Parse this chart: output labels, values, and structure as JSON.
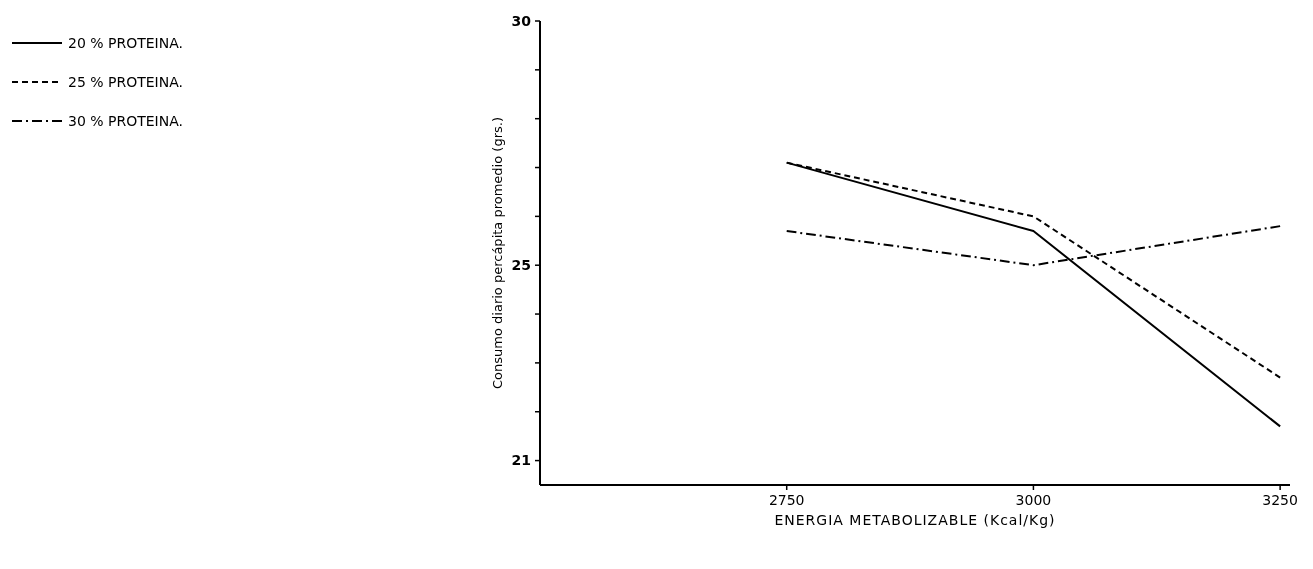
{
  "chart_data": {
    "type": "line",
    "xlabel": "ENERGIA METABOLIZABLE (Kcal/Kg)",
    "ylabel": "Consumo diario percápita promedio (grs.)",
    "x": [
      2750,
      3000,
      3250
    ],
    "series": [
      {
        "name": "20 % PROTEINA.",
        "color": "#000000",
        "line_style": "solid",
        "values": [
          27.1,
          25.7,
          21.7
        ]
      },
      {
        "name": "25 % PROTEINA.",
        "color": "#000000",
        "line_style": "dashed",
        "values": [
          27.1,
          26.0,
          22.7
        ]
      },
      {
        "name": "30 % PROTEINA.",
        "color": "#000000",
        "line_style": "dashdot",
        "values": [
          25.7,
          25.0,
          25.8
        ]
      }
    ],
    "xlim": [
      2500,
      3260
    ],
    "xticks": [
      2750,
      3000,
      3250
    ],
    "ylim": [
      20.5,
      30
    ],
    "yticks": [
      30,
      {
        "value": 29,
        "label": null
      },
      {
        "value": 28,
        "label": null
      },
      {
        "value": 27,
        "label": null
      },
      {
        "value": 26,
        "label": null
      },
      25,
      {
        "value": 24,
        "label": null
      },
      {
        "value": 23,
        "label": null
      },
      {
        "value": 22,
        "label": null
      },
      21
    ],
    "grid": false,
    "legend": "top left",
    "marker": "none"
  }
}
